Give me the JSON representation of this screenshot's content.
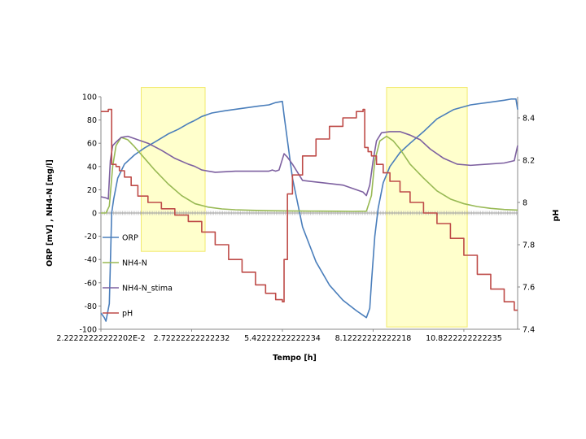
{
  "chart_data": {
    "type": "line",
    "title": "",
    "xlabel": "Tempo [h]",
    "ylabel_left": "ORP [mV] , NH4-N [mg/l]",
    "ylabel_right": "pH",
    "xlim": [
      0,
      12.4
    ],
    "ylim_left": [
      -100,
      100
    ],
    "ylim_right": [
      7.4,
      8.5
    ],
    "yticks_left": [
      "100",
      "80",
      "60",
      "40",
      "20",
      "0",
      "-20",
      "-40",
      "-60",
      "-80",
      "-100"
    ],
    "yticks_right": [
      "8.4",
      "8.2",
      "8",
      "7.8",
      "7.6",
      "7.4"
    ],
    "xticks": [
      {
        "x": 0.0,
        "label": "2.22222222222202E-2"
      },
      {
        "x": 2.7,
        "label": "2.72222222222232"
      },
      {
        "x": 5.4,
        "label": "5.42222222222234"
      },
      {
        "x": 8.1,
        "label": "8.12222222222218"
      },
      {
        "x": 10.8,
        "label": "10.8222222222235"
      }
    ],
    "shaded_regions": [
      {
        "x0": 1.2,
        "x1": 3.1,
        "y0": -33,
        "y1": 108
      },
      {
        "x0": 8.5,
        "x1": 10.9,
        "y0": -98,
        "y1": 108
      }
    ],
    "legend_position": "left, inside plot",
    "grid": false,
    "series": [
      {
        "name": "ORP",
        "axis": "left",
        "color": "#4a7ebb",
        "x": [
          0,
          0.1,
          0.15,
          0.25,
          0.32,
          0.38,
          0.5,
          0.7,
          1.0,
          1.3,
          1.6,
          2.0,
          2.3,
          2.6,
          2.75,
          3.0,
          3.3,
          3.7,
          4.2,
          4.7,
          5.0,
          5.2,
          5.4,
          5.45,
          5.7,
          6.0,
          6.4,
          6.8,
          7.2,
          7.6,
          7.9,
          8.0,
          8.05,
          8.15,
          8.25,
          8.4,
          8.6,
          8.9,
          9.2,
          9.6,
          10.0,
          10.5,
          11.0,
          11.5,
          12.0,
          12.2,
          12.35,
          12.4
        ],
        "y": [
          -86,
          -90,
          -93,
          -78,
          0,
          12,
          30,
          42,
          50,
          56,
          61,
          68,
          72,
          77,
          79,
          83,
          86,
          88,
          90,
          92,
          93,
          95,
          96,
          84,
          30,
          -12,
          -42,
          -62,
          -75,
          -84,
          -90,
          -82,
          -60,
          -20,
          4,
          26,
          40,
          52,
          60,
          70,
          81,
          89,
          93,
          95,
          97,
          98,
          98,
          89
        ]
      },
      {
        "name": "NH4-N",
        "axis": "left",
        "color": "#98b954",
        "x": [
          0,
          0.15,
          0.25,
          0.35,
          0.45,
          0.6,
          0.8,
          1.0,
          1.3,
          1.6,
          2.0,
          2.4,
          2.8,
          3.2,
          3.6,
          4.0,
          4.5,
          5.0,
          5.5,
          6.0,
          6.5,
          7.0,
          7.5,
          7.9,
          8.05,
          8.15,
          8.3,
          8.5,
          8.7,
          8.9,
          9.2,
          9.6,
          10.0,
          10.4,
          10.8,
          11.2,
          11.6,
          12.0,
          12.4
        ],
        "y": [
          0,
          0,
          6,
          40,
          58,
          65,
          63,
          57,
          47,
          37,
          25,
          15,
          8,
          5,
          3.5,
          2.8,
          2.3,
          2,
          1.8,
          1.7,
          1.6,
          1.5,
          1.4,
          1.5,
          15,
          45,
          62,
          66,
          62,
          55,
          42,
          30,
          19,
          12,
          8,
          5.5,
          4,
          3,
          2.5
        ]
      },
      {
        "name": "NH4-N_stima",
        "axis": "left",
        "color": "#7d60a0",
        "x": [
          0,
          0.15,
          0.22,
          0.28,
          0.35,
          0.45,
          0.6,
          0.8,
          1.0,
          1.4,
          1.8,
          2.2,
          2.6,
          2.8,
          3.0,
          3.4,
          4.0,
          4.6,
          5.0,
          5.1,
          5.2,
          5.3,
          5.45,
          5.55,
          5.7,
          6.0,
          6.6,
          7.2,
          7.8,
          7.9,
          8.0,
          8.1,
          8.2,
          8.35,
          8.6,
          8.9,
          9.2,
          9.5,
          9.8,
          10.2,
          10.6,
          11.0,
          11.5,
          12.0,
          12.3,
          12.4
        ],
        "y": [
          14,
          13,
          12,
          45,
          58,
          61,
          65,
          66,
          64,
          60,
          54,
          47,
          42,
          40,
          37,
          35,
          36,
          36,
          36,
          37,
          36,
          37,
          51,
          48,
          42,
          28,
          26,
          24,
          18,
          15,
          24,
          45,
          62,
          69,
          70,
          70,
          67,
          63,
          55,
          47,
          42,
          41,
          42,
          43,
          45,
          58
        ]
      },
      {
        "name": "pH",
        "axis": "right",
        "color": "#be4b48",
        "x": [
          0,
          0.15,
          0.22,
          0.32,
          0.45,
          0.55,
          0.7,
          0.9,
          1.1,
          1.4,
          1.8,
          2.2,
          2.6,
          3.0,
          3.4,
          3.8,
          4.2,
          4.6,
          4.9,
          5.2,
          5.4,
          5.45,
          5.55,
          5.7,
          6.0,
          6.4,
          6.8,
          7.2,
          7.6,
          7.8,
          7.85,
          7.95,
          8.05,
          8.2,
          8.4,
          8.6,
          8.9,
          9.2,
          9.6,
          10.0,
          10.4,
          10.8,
          11.2,
          11.6,
          12.0,
          12.3,
          12.4
        ],
        "y": [
          8.43,
          8.43,
          8.44,
          8.18,
          8.17,
          8.15,
          8.12,
          8.08,
          8.03,
          8.0,
          7.97,
          7.94,
          7.91,
          7.86,
          7.8,
          7.73,
          7.67,
          7.61,
          7.57,
          7.54,
          7.53,
          7.73,
          8.04,
          8.13,
          8.22,
          8.3,
          8.36,
          8.4,
          8.43,
          8.44,
          8.26,
          8.24,
          8.22,
          8.18,
          8.14,
          8.1,
          8.05,
          8.0,
          7.95,
          7.9,
          7.83,
          7.75,
          7.66,
          7.59,
          7.53,
          7.49,
          7.49
        ]
      }
    ]
  }
}
